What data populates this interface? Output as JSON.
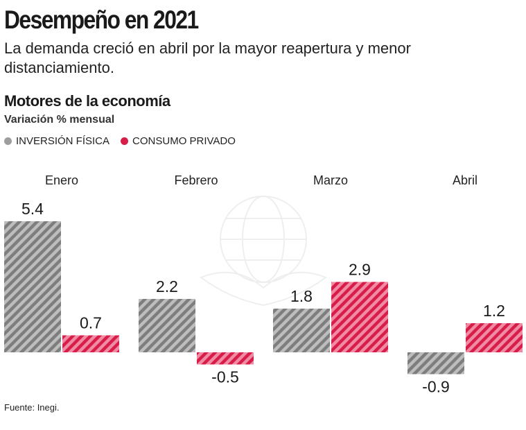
{
  "header": {
    "title": "Desempeño en 2021",
    "subtitle": "La demanda creció en abril por la mayor reapertura y menor distanciamiento."
  },
  "section": {
    "title": "Motores de la economía",
    "unit": "Variación % mensual"
  },
  "legend": {
    "items": [
      {
        "label": "INVERSIÓN FÍSICA",
        "color": "#9e9e9e"
      },
      {
        "label": "CONSUMO PRIVADO",
        "color": "#d81e48"
      }
    ]
  },
  "footer": {
    "source": "Fuente: Inegi."
  },
  "chart_data": {
    "type": "bar",
    "categories": [
      "Enero",
      "Febrero",
      "Marzo",
      "Abril"
    ],
    "series": [
      {
        "name": "INVERSIÓN FÍSICA",
        "values": [
          5.4,
          2.2,
          1.8,
          -0.9
        ],
        "labels": [
          "5.4",
          "2.2",
          "1.8",
          "-0.9"
        ],
        "color": "#9e9e9e"
      },
      {
        "name": "CONSUMO PRIVADO",
        "values": [
          0.7,
          -0.5,
          2.9,
          1.2
        ],
        "labels": [
          "0.7",
          "-0.5",
          "2.9",
          "1.2"
        ],
        "color": "#d81e48"
      }
    ],
    "title": "Motores de la economía",
    "ylabel": "Variación % mensual",
    "ylim": [
      -0.9,
      5.4
    ],
    "grid": false,
    "legend_position": "top-left",
    "pattern": "diagonal-hatch"
  }
}
